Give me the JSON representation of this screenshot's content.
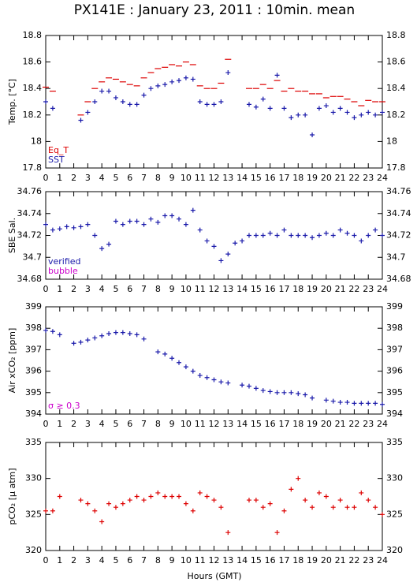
{
  "chart_data": [
    {
      "type": "scatter",
      "title": "PX141E : January 23, 2011 : 10min. mean",
      "ylabel": "Temp. [°C]",
      "x": [
        0,
        0.5,
        1,
        1.5,
        2,
        2.5,
        3,
        3.5,
        4,
        4.5,
        5,
        5.5,
        6,
        6.5,
        7,
        7.5,
        8,
        8.5,
        9,
        9.5,
        10,
        10.5,
        11,
        11.5,
        12,
        12.5,
        13,
        13.5,
        14,
        14.5,
        15,
        15.5,
        16,
        16.5,
        17,
        17.5,
        18,
        18.5,
        19,
        19.5,
        20,
        20.5,
        21,
        21.5,
        22,
        22.5,
        23,
        23.5,
        24
      ],
      "xlim": [
        0,
        24
      ],
      "xticks": [
        0,
        1,
        2,
        3,
        4,
        5,
        6,
        7,
        8,
        9,
        10,
        11,
        12,
        13,
        14,
        15,
        16,
        17,
        18,
        19,
        20,
        21,
        22,
        23,
        24
      ],
      "ylim": [
        17.8,
        18.8
      ],
      "yticks": [
        17.8,
        18,
        18.2,
        18.4,
        18.6,
        18.8
      ],
      "series": [
        {
          "name": "Eq_T",
          "color": "#dd0000",
          "marker": "dash",
          "values": [
            18.41,
            18.38,
            null,
            null,
            null,
            18.2,
            18.3,
            18.4,
            18.45,
            18.48,
            18.47,
            18.45,
            18.43,
            18.42,
            18.48,
            18.52,
            18.55,
            18.56,
            18.58,
            18.57,
            18.6,
            18.58,
            18.42,
            18.4,
            18.4,
            18.44,
            18.62,
            null,
            null,
            18.4,
            18.4,
            18.43,
            18.4,
            18.46,
            18.38,
            18.4,
            18.38,
            18.38,
            18.36,
            18.36,
            18.33,
            18.34,
            18.34,
            18.32,
            18.3,
            18.27,
            18.31,
            18.3,
            18.3
          ]
        },
        {
          "name": "SST",
          "color": "#1a1aaa",
          "marker": "plus",
          "values": [
            18.3,
            18.25,
            null,
            null,
            null,
            18.16,
            18.22,
            18.3,
            18.38,
            18.38,
            18.33,
            18.3,
            18.28,
            18.28,
            18.35,
            18.4,
            18.42,
            18.43,
            18.45,
            18.46,
            18.48,
            18.47,
            18.3,
            18.28,
            18.28,
            18.3,
            18.52,
            null,
            null,
            18.28,
            18.26,
            18.32,
            18.25,
            18.5,
            18.25,
            18.18,
            18.2,
            18.2,
            18.05,
            18.25,
            18.27,
            18.22,
            18.25,
            18.22,
            18.18,
            18.2,
            18.22,
            18.2,
            18.22
          ]
        }
      ]
    },
    {
      "type": "scatter",
      "ylabel": "SBE Sal.",
      "x": [
        0,
        0.5,
        1,
        1.5,
        2,
        2.5,
        3,
        3.5,
        4,
        4.5,
        5,
        5.5,
        6,
        6.5,
        7,
        7.5,
        8,
        8.5,
        9,
        9.5,
        10,
        10.5,
        11,
        11.5,
        12,
        12.5,
        13,
        13.5,
        14,
        14.5,
        15,
        15.5,
        16,
        16.5,
        17,
        17.5,
        18,
        18.5,
        19,
        19.5,
        20,
        20.5,
        21,
        21.5,
        22,
        22.5,
        23,
        23.5,
        24
      ],
      "xlim": [
        0,
        24
      ],
      "xticks": [
        0,
        1,
        2,
        3,
        4,
        5,
        6,
        7,
        8,
        9,
        10,
        11,
        12,
        13,
        14,
        15,
        16,
        17,
        18,
        19,
        20,
        21,
        22,
        23,
        24
      ],
      "ylim": [
        34.68,
        34.76
      ],
      "yticks": [
        34.68,
        34.7,
        34.72,
        34.74,
        34.76
      ],
      "series": [
        {
          "name": "verified",
          "color": "#1a1aaa",
          "marker": "plus",
          "values": [
            34.73,
            34.725,
            34.726,
            34.728,
            34.727,
            34.728,
            34.73,
            34.72,
            34.708,
            34.712,
            34.733,
            34.73,
            34.733,
            34.733,
            34.73,
            34.735,
            34.732,
            34.738,
            34.738,
            34.735,
            34.73,
            34.743,
            34.725,
            34.715,
            34.71,
            34.697,
            34.703,
            34.713,
            34.715,
            34.72,
            34.72,
            34.72,
            34.722,
            34.72,
            34.725,
            34.72,
            34.72,
            34.72,
            34.718,
            34.72,
            34.722,
            34.72,
            34.725,
            34.722,
            34.72,
            34.715,
            34.72,
            34.725,
            34.72
          ]
        },
        {
          "name": "bubble",
          "color": "#cc00cc",
          "marker": "plus",
          "values": [
            null,
            null,
            null,
            null,
            null,
            null,
            null,
            null,
            null,
            null,
            null,
            null,
            null,
            null,
            null,
            null,
            null,
            null,
            null,
            null,
            null,
            null,
            null,
            null,
            null,
            null,
            null,
            null,
            null,
            null,
            null,
            null,
            null,
            null,
            null,
            null,
            null,
            null,
            null,
            null,
            null,
            null,
            null,
            null,
            null,
            null,
            null,
            null,
            null
          ]
        }
      ]
    },
    {
      "type": "scatter",
      "ylabel": "Air xCO₂ [ppm]",
      "x": [
        0,
        0.5,
        1,
        1.5,
        2,
        2.5,
        3,
        3.5,
        4,
        4.5,
        5,
        5.5,
        6,
        6.5,
        7,
        7.5,
        8,
        8.5,
        9,
        9.5,
        10,
        10.5,
        11,
        11.5,
        12,
        12.5,
        13,
        13.5,
        14,
        14.5,
        15,
        15.5,
        16,
        16.5,
        17,
        17.5,
        18,
        18.5,
        19,
        19.5,
        20,
        20.5,
        21,
        21.5,
        22,
        22.5,
        23,
        23.5,
        24
      ],
      "xlim": [
        0,
        24
      ],
      "xticks": [
        0,
        1,
        2,
        3,
        4,
        5,
        6,
        7,
        8,
        9,
        10,
        11,
        12,
        13,
        14,
        15,
        16,
        17,
        18,
        19,
        20,
        21,
        22,
        23,
        24
      ],
      "ylim": [
        394,
        399
      ],
      "yticks": [
        394,
        395,
        396,
        397,
        398,
        399
      ],
      "series": [
        {
          "color": "#1a1aaa",
          "marker": "plus",
          "values": [
            397.9,
            397.85,
            397.7,
            null,
            397.3,
            397.35,
            397.45,
            397.55,
            397.65,
            397.75,
            397.8,
            397.8,
            397.75,
            397.7,
            397.5,
            null,
            396.9,
            396.8,
            396.6,
            396.4,
            396.2,
            396.0,
            395.8,
            395.7,
            395.6,
            395.5,
            395.45,
            null,
            395.35,
            395.3,
            395.2,
            395.1,
            395.05,
            395.0,
            395.0,
            395.0,
            394.95,
            394.9,
            394.75,
            null,
            394.65,
            394.6,
            394.55,
            394.55,
            394.5,
            394.5,
            394.5,
            394.5,
            394.45
          ]
        },
        {
          "name": "σ ≥ 0.3",
          "color": "#cc00cc",
          "marker": "plus",
          "values": [
            null,
            null,
            null,
            null,
            null,
            null,
            null,
            null,
            null,
            null,
            null,
            null,
            null,
            null,
            null,
            null,
            null,
            null,
            null,
            null,
            null,
            null,
            null,
            null,
            null,
            null,
            null,
            null,
            null,
            null,
            null,
            null,
            null,
            null,
            null,
            null,
            null,
            null,
            null,
            null,
            null,
            null,
            null,
            null,
            null,
            null,
            null,
            null,
            null
          ]
        }
      ]
    },
    {
      "type": "scatter",
      "ylabel": "pCO₂ [μ atm]",
      "xlabel": "Hours (GMT)",
      "x": [
        0,
        0.5,
        1,
        1.5,
        2,
        2.5,
        3,
        3.5,
        4,
        4.5,
        5,
        5.5,
        6,
        6.5,
        7,
        7.5,
        8,
        8.5,
        9,
        9.5,
        10,
        10.5,
        11,
        11.5,
        12,
        12.5,
        13,
        13.5,
        14,
        14.5,
        15,
        15.5,
        16,
        16.5,
        17,
        17.5,
        18,
        18.5,
        19,
        19.5,
        20,
        20.5,
        21,
        21.5,
        22,
        22.5,
        23,
        23.5,
        24
      ],
      "xlim": [
        0,
        24
      ],
      "xticks": [
        0,
        1,
        2,
        3,
        4,
        5,
        6,
        7,
        8,
        9,
        10,
        11,
        12,
        13,
        14,
        15,
        16,
        17,
        18,
        19,
        20,
        21,
        22,
        23,
        24
      ],
      "ylim": [
        320,
        335
      ],
      "yticks": [
        320,
        325,
        330,
        335
      ],
      "series": [
        {
          "color": "#dd0000",
          "marker": "plus",
          "values": [
            325.5,
            325.5,
            327.5,
            null,
            null,
            327,
            326.5,
            325.5,
            324,
            326.5,
            326,
            326.5,
            327,
            327.5,
            327,
            327.5,
            328,
            327.5,
            327.5,
            327.5,
            326.5,
            325.5,
            328,
            327.5,
            327,
            326,
            322.5,
            null,
            null,
            327,
            327,
            326,
            326.5,
            322.5,
            325.5,
            328.5,
            330,
            327,
            326,
            328,
            327.5,
            326,
            327,
            326,
            326,
            328,
            327,
            326,
            325
          ]
        }
      ]
    }
  ]
}
